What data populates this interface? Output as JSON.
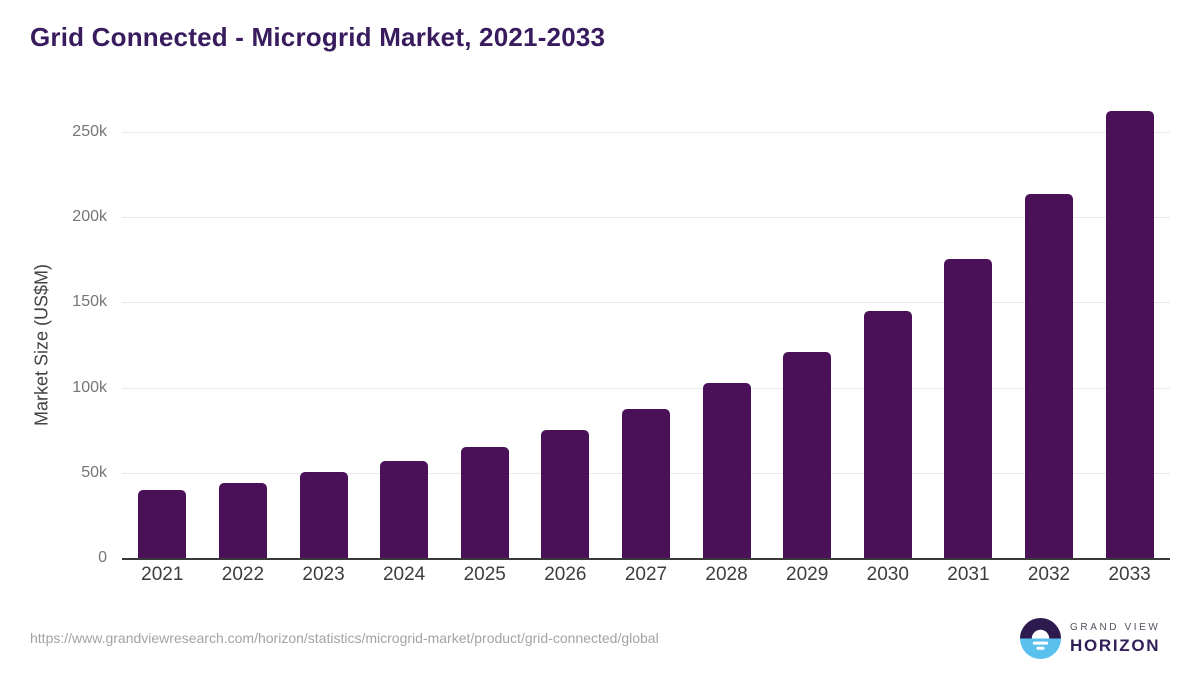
{
  "chart_data": {
    "type": "bar",
    "title": "Grid Connected - Microgrid Market, 2021-2033",
    "xlabel": "",
    "ylabel": "Market Size (US$M)",
    "categories": [
      "2021",
      "2022",
      "2023",
      "2024",
      "2025",
      "2026",
      "2027",
      "2028",
      "2029",
      "2030",
      "2031",
      "2032",
      "2033"
    ],
    "values": [
      40000,
      44100,
      50300,
      56900,
      65100,
      75100,
      87200,
      102800,
      121100,
      145200,
      175300,
      213400,
      262300
    ],
    "unit": "US$M",
    "ylim": [
      0,
      250000
    ],
    "yticks": [
      {
        "value": 0,
        "label": "0"
      },
      {
        "value": 50000,
        "label": "50k"
      },
      {
        "value": 100000,
        "label": "100k"
      },
      {
        "value": 150000,
        "label": "150k"
      },
      {
        "value": 200000,
        "label": "200k"
      },
      {
        "value": 250000,
        "label": "250k"
      }
    ],
    "grid": true,
    "legend": false
  },
  "footer": {
    "source_url": "https://www.grandviewresearch.com/horizon/statistics/microgrid-market/product/grid-connected/global",
    "logo": {
      "top_text": "GRAND VIEW",
      "bottom_text": "HORIZON"
    }
  },
  "colors": {
    "title": "#381c5e",
    "bar": "#4a1158",
    "gridline": "#e9e9e9",
    "axis_line": "#3a3a3a",
    "tick_label": "#757575",
    "x_label": "#3d3d3d",
    "y_axis_title": "#424242",
    "url_text": "#a3a3a3",
    "logo_purple": "#2d1a4e",
    "logo_blue": "#5ac1ef"
  }
}
